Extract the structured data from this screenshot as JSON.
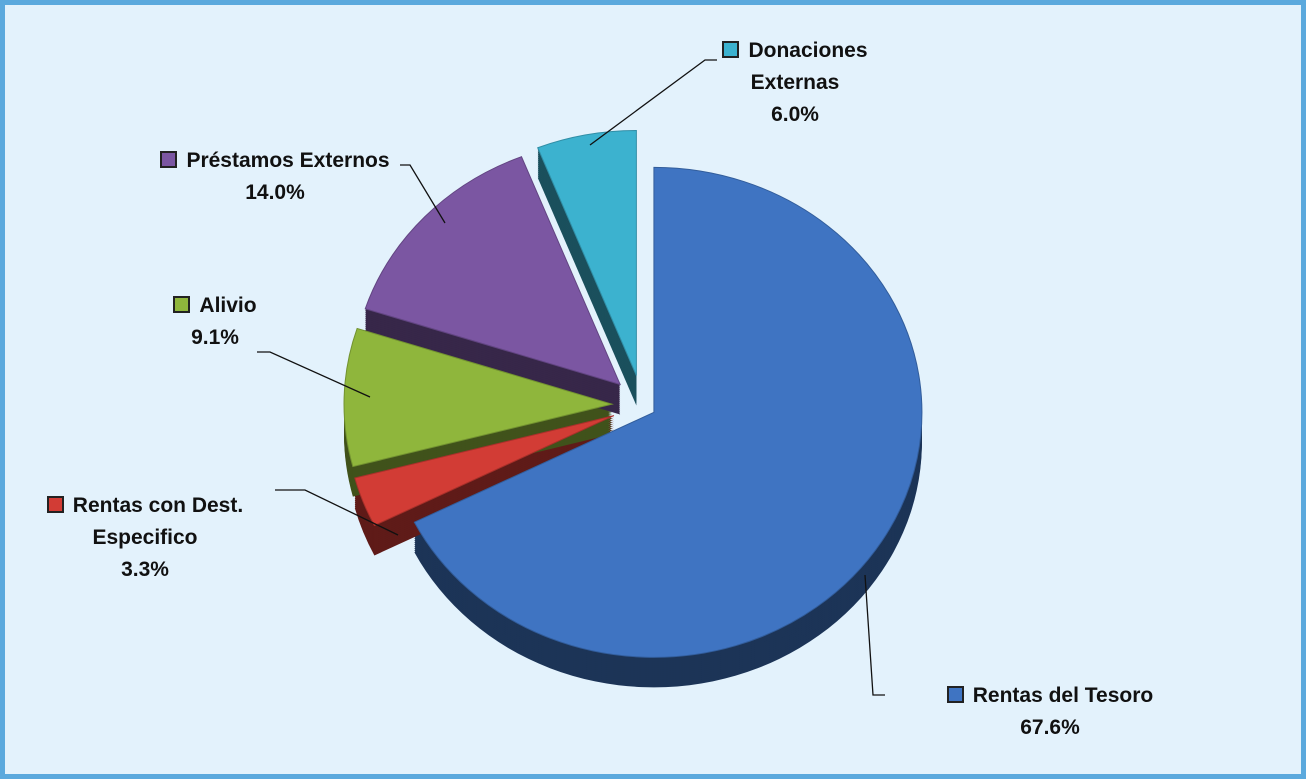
{
  "chart_data": {
    "type": "pie",
    "categories": [
      "Rentas del Tesoro",
      "Rentas con Dest. Especifico",
      "Alivio",
      "Préstamos Externos",
      "Donaciones Externas"
    ],
    "values": [
      67.6,
      3.3,
      9.1,
      14.0,
      6.0
    ],
    "value_labels": [
      "67.6%",
      "3.3%",
      "9.1%",
      "14.0%",
      "6.0%"
    ],
    "colors": [
      "#3f74c2",
      "#d23c35",
      "#8fb63c",
      "#7b56a2",
      "#3cb2cf"
    ]
  }
}
